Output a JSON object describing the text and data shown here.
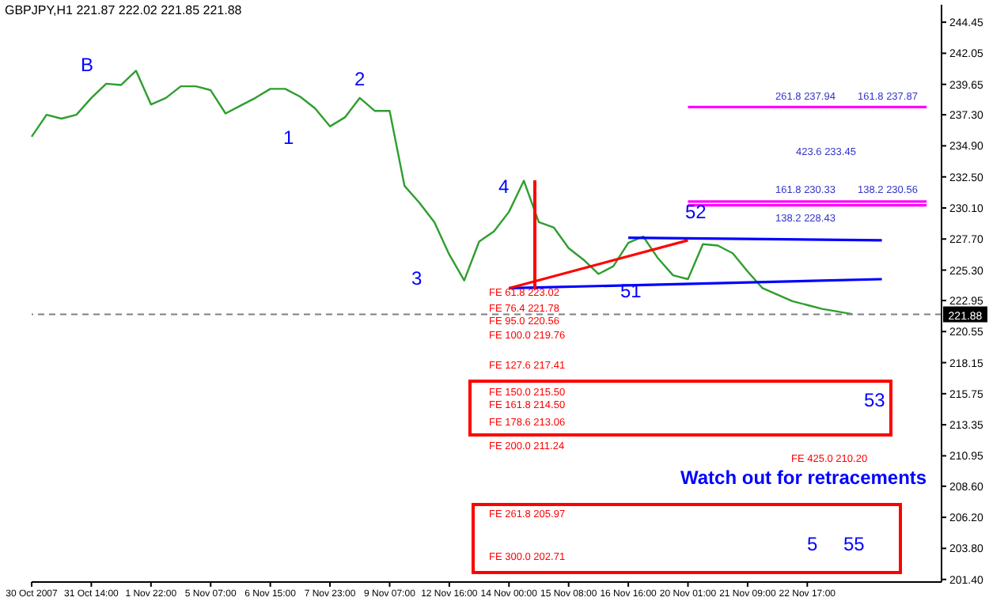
{
  "chart_data": {
    "type": "line",
    "title": "GBPJPY,H1  221.87 222.02 221.85 221.88",
    "categories": [
      "30 Oct 2007",
      null,
      null,
      null,
      "31 Oct 14:00",
      null,
      null,
      null,
      "1 Nov 22:00",
      null,
      null,
      null,
      "5 Nov 07:00",
      null,
      null,
      null,
      "6 Nov 15:00",
      null,
      null,
      null,
      "7 Nov 23:00",
      null,
      null,
      null,
      "9 Nov 07:00",
      null,
      null,
      null,
      "12 Nov 16:00",
      null,
      null,
      null,
      "14 Nov 00:00",
      null,
      null,
      null,
      "15 Nov 08:00",
      null,
      null,
      null,
      "16 Nov 16:00",
      null,
      null,
      null,
      "20 Nov 01:00",
      null,
      null,
      null,
      "21 Nov 09:00",
      null,
      null,
      null,
      "22 Nov 17:00",
      null,
      null,
      null,
      null,
      null,
      null,
      null,
      null,
      null
    ],
    "ylim": [
      201.2,
      245.8
    ],
    "yticks": [
      {
        "value": 244.45,
        "label": "244.45"
      },
      {
        "value": 242.05,
        "label": "242.05"
      },
      {
        "value": 239.65,
        "label": "239.65"
      },
      {
        "value": 237.3,
        "label": "237.30"
      },
      {
        "value": 234.9,
        "label": "234.90"
      },
      {
        "value": 232.5,
        "label": "232.50"
      },
      {
        "value": 230.1,
        "label": "230.10"
      },
      {
        "value": 227.7,
        "label": "227.70"
      },
      {
        "value": 225.3,
        "label": "225.30"
      },
      {
        "value": 222.95,
        "label": "222.95"
      },
      {
        "value": 220.55,
        "label": "220.55"
      },
      {
        "value": 218.15,
        "label": "218.15"
      },
      {
        "value": 215.75,
        "label": "215.75"
      },
      {
        "value": 213.35,
        "label": "213.35"
      },
      {
        "value": 210.95,
        "label": "210.95"
      },
      {
        "value": 208.6,
        "label": "208.60"
      },
      {
        "value": 206.2,
        "label": "206.20"
      },
      {
        "value": 203.8,
        "label": "203.80"
      },
      {
        "value": 201.4,
        "label": "201.40"
      }
    ],
    "marker": "none",
    "series": [
      {
        "color": "#2e9e2e",
        "values": [
          235.6,
          237.3,
          237.0,
          237.3,
          238.6,
          239.7,
          239.6,
          240.7,
          238.1,
          238.6,
          239.5,
          239.5,
          239.2,
          237.4,
          238.0,
          238.6,
          239.3,
          239.3,
          238.7,
          237.8,
          236.4,
          237.1,
          238.6,
          237.6,
          237.6,
          231.8,
          230.5,
          229.0,
          226.5,
          224.5,
          227.5,
          228.3,
          229.8,
          232.2,
          229.0,
          228.6,
          227.0,
          226.1,
          225.0,
          225.6,
          227.4,
          227.9,
          226.2,
          224.9,
          224.6,
          227.3,
          227.2,
          226.6,
          225.2,
          223.9,
          223.4,
          222.9,
          222.6,
          222.3,
          222.1,
          221.9,
          null,
          null,
          null,
          null,
          null,
          null
        ]
      },
      {
        "color": "#0000ff",
        "values": [
          null,
          null,
          null,
          null,
          null,
          null,
          null,
          null,
          null,
          null,
          null,
          null,
          null,
          null,
          null,
          null,
          null,
          null,
          null,
          null,
          null,
          null,
          null,
          null,
          null,
          null,
          null,
          null,
          null,
          null,
          null,
          null,
          null,
          null,
          null,
          null,
          null,
          null,
          null,
          null,
          227.8,
          null,
          null,
          null,
          null,
          null,
          null,
          null,
          null,
          null,
          null,
          null,
          null,
          null,
          null,
          null,
          null,
          227.6,
          null,
          null,
          null,
          null
        ]
      },
      {
        "color": "#0000ff",
        "values": [
          null,
          null,
          null,
          null,
          null,
          null,
          null,
          null,
          null,
          null,
          null,
          null,
          null,
          null,
          null,
          null,
          null,
          null,
          null,
          null,
          null,
          null,
          null,
          null,
          null,
          null,
          null,
          null,
          null,
          null,
          null,
          null,
          223.9,
          null,
          null,
          null,
          null,
          null,
          null,
          null,
          null,
          null,
          null,
          null,
          null,
          null,
          null,
          null,
          null,
          null,
          null,
          null,
          null,
          null,
          null,
          null,
          null,
          224.6,
          null,
          null,
          null,
          null
        ]
      },
      {
        "color": "#ff0000",
        "values": [
          null,
          null,
          null,
          null,
          null,
          null,
          null,
          null,
          null,
          null,
          null,
          null,
          null,
          null,
          null,
          null,
          null,
          null,
          null,
          null,
          null,
          null,
          null,
          null,
          null,
          null,
          null,
          null,
          null,
          null,
          null,
          null,
          223.9,
          null,
          null,
          null,
          null,
          null,
          null,
          null,
          null,
          null,
          null,
          null,
          227.6,
          null,
          null,
          null,
          null,
          null,
          null,
          null,
          null,
          null,
          null,
          null,
          null,
          null,
          null,
          null,
          null,
          null
        ]
      },
      {
        "color": "#ff00ff",
        "values": [
          null,
          null,
          null,
          null,
          null,
          null,
          null,
          null,
          null,
          null,
          null,
          null,
          null,
          null,
          null,
          null,
          null,
          null,
          null,
          null,
          null,
          null,
          null,
          null,
          null,
          null,
          null,
          null,
          null,
          null,
          null,
          null,
          null,
          null,
          null,
          null,
          null,
          null,
          null,
          null,
          null,
          null,
          null,
          null,
          237.9,
          null,
          null,
          null,
          null,
          null,
          null,
          null,
          null,
          null,
          null,
          null,
          null,
          null,
          null,
          null,
          237.9,
          null
        ]
      },
      {
        "color": "#ff00ff",
        "values": [
          null,
          null,
          null,
          null,
          null,
          null,
          null,
          null,
          null,
          null,
          null,
          null,
          null,
          null,
          null,
          null,
          null,
          null,
          null,
          null,
          null,
          null,
          null,
          null,
          null,
          null,
          null,
          null,
          null,
          null,
          null,
          null,
          null,
          null,
          null,
          null,
          null,
          null,
          null,
          null,
          null,
          null,
          null,
          null,
          230.6,
          null,
          null,
          null,
          null,
          null,
          null,
          null,
          null,
          null,
          null,
          null,
          null,
          null,
          null,
          null,
          230.6,
          null
        ]
      },
      {
        "color": "#ff00ff",
        "values": [
          null,
          null,
          null,
          null,
          null,
          null,
          null,
          null,
          null,
          null,
          null,
          null,
          null,
          null,
          null,
          null,
          null,
          null,
          null,
          null,
          null,
          null,
          null,
          null,
          null,
          null,
          null,
          null,
          null,
          null,
          null,
          null,
          null,
          null,
          null,
          null,
          null,
          null,
          null,
          null,
          null,
          null,
          null,
          null,
          230.3,
          null,
          null,
          null,
          null,
          null,
          null,
          null,
          null,
          null,
          null,
          null,
          null,
          null,
          null,
          null,
          230.3,
          null
        ]
      }
    ],
    "ref_lines": [
      {
        "axis": "y",
        "value": 221.88,
        "label": "221.88",
        "color": "#808080",
        "line_style": "dashed"
      }
    ],
    "annotations": [
      "B",
      "1",
      "2",
      "3",
      "4",
      "51",
      "52",
      "53",
      "5",
      "55",
      "FE 61.8  223.02",
      "FE 76.4  221.78",
      "FE 95.0  220.56",
      "FE 100.0  219.76",
      "FE 127.6  217.41",
      "FE 150.0  215.50",
      "FE 161.8  214.50",
      "FE 178.6  213.06",
      "FE 200.0  211.24",
      "FE 261.8  205.97",
      "FE 300.0  202.71",
      "FE 425.0  210.20",
      "261.8  237.94",
      "161.8  237.87",
      "423.6  233.45",
      "161.8  230.33",
      "138.2  230.56",
      "138.2  228.43",
      "Watch out for retracements"
    ]
  }
}
